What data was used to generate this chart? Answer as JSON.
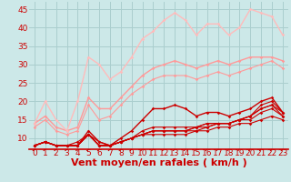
{
  "xlabel": "Vent moyen/en rafales ( km/h )",
  "xlim": [
    -0.5,
    23.5
  ],
  "ylim": [
    7,
    47
  ],
  "yticks": [
    10,
    15,
    20,
    25,
    30,
    35,
    40,
    45
  ],
  "xticks": [
    0,
    1,
    2,
    3,
    4,
    5,
    6,
    7,
    8,
    9,
    10,
    11,
    12,
    13,
    14,
    15,
    16,
    17,
    18,
    19,
    20,
    21,
    22,
    23
  ],
  "background_color": "#cce8e8",
  "grid_color": "#aacece",
  "series": [
    {
      "y": [
        8,
        9,
        8,
        8,
        8,
        11,
        8,
        8,
        9,
        10,
        11,
        11,
        11,
        11,
        11,
        12,
        12,
        13,
        13,
        14,
        14,
        15,
        16,
        15
      ],
      "color": "#cc0000",
      "lw": 0.8,
      "marker": "D",
      "ms": 1.8
    },
    {
      "y": [
        8,
        9,
        8,
        8,
        8,
        11,
        8,
        8,
        9,
        10,
        12,
        13,
        13,
        13,
        13,
        13,
        14,
        14,
        14,
        15,
        16,
        18,
        19,
        17
      ],
      "color": "#cc0000",
      "lw": 0.8,
      "marker": "D",
      "ms": 1.8
    },
    {
      "y": [
        8,
        9,
        8,
        8,
        8,
        12,
        9,
        8,
        10,
        12,
        15,
        18,
        18,
        19,
        18,
        16,
        17,
        17,
        16,
        17,
        18,
        20,
        21,
        17
      ],
      "color": "#cc0000",
      "lw": 1.0,
      "marker": "D",
      "ms": 1.8
    },
    {
      "y": [
        8,
        9,
        8,
        8,
        8,
        11,
        8,
        8,
        9,
        10,
        11,
        12,
        12,
        12,
        12,
        12,
        13,
        14,
        14,
        15,
        15,
        17,
        18,
        16
      ],
      "color": "#cc0000",
      "lw": 0.8,
      "marker": "D",
      "ms": 1.8
    },
    {
      "y": [
        8,
        9,
        8,
        8,
        8,
        11,
        8,
        8,
        9,
        10,
        11,
        12,
        12,
        12,
        12,
        13,
        14,
        14,
        14,
        15,
        16,
        19,
        20,
        17
      ],
      "color": "#cc0000",
      "lw": 0.8,
      "marker": "D",
      "ms": 1.8
    },
    {
      "y": [
        8,
        9,
        8,
        8,
        9,
        11,
        9,
        8,
        9,
        10,
        11,
        12,
        12,
        12,
        12,
        13,
        13,
        14,
        14,
        15,
        16,
        18,
        19,
        16
      ],
      "color": "#cc0000",
      "lw": 0.8,
      "marker": "D",
      "ms": 1.8
    },
    {
      "y": [
        13,
        15,
        12,
        11,
        12,
        19,
        15,
        16,
        19,
        22,
        24,
        26,
        27,
        27,
        27,
        26,
        27,
        28,
        27,
        28,
        29,
        30,
        31,
        29
      ],
      "color": "#ff9999",
      "lw": 0.8,
      "marker": "D",
      "ms": 1.8
    },
    {
      "y": [
        14,
        16,
        13,
        12,
        13,
        21,
        18,
        18,
        21,
        24,
        27,
        29,
        30,
        31,
        30,
        29,
        30,
        31,
        30,
        31,
        32,
        32,
        32,
        31
      ],
      "color": "#ff9999",
      "lw": 1.0,
      "marker": "D",
      "ms": 1.8
    },
    {
      "y": [
        14,
        20,
        15,
        12,
        20,
        32,
        30,
        26,
        28,
        32,
        37,
        39,
        42,
        44,
        42,
        38,
        41,
        41,
        38,
        40,
        45,
        44,
        43,
        38
      ],
      "color": "#ffbbbb",
      "lw": 1.0,
      "marker": "D",
      "ms": 1.8
    }
  ],
  "tick_label_color": "#cc0000",
  "xlabel_color": "#cc0000",
  "xlabel_fontsize": 8,
  "tick_fontsize": 6.5
}
